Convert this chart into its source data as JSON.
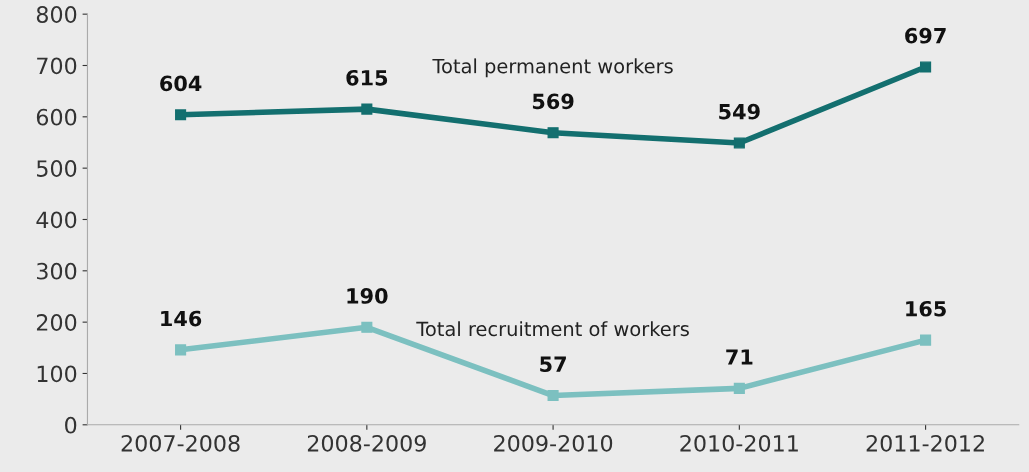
{
  "chart_data": {
    "type": "line",
    "categories": [
      "2007-2008",
      "2008-2009",
      "2009-2010",
      "2010-2011",
      "2011-2012"
    ],
    "series": [
      {
        "name": "Total permanent workers",
        "color": "#136f6f",
        "values": [
          604,
          615,
          569,
          549,
          697
        ]
      },
      {
        "name": "Total recruitment of workers",
        "color": "#7cc0c0",
        "values": [
          146,
          190,
          57,
          71,
          165
        ]
      }
    ],
    "ylim": [
      0,
      800
    ],
    "yticks": [
      0,
      100,
      200,
      300,
      400,
      500,
      600,
      700,
      800
    ],
    "data_labels": true,
    "marker": "square",
    "line_style": "solid",
    "grid": false,
    "legend": false
  }
}
